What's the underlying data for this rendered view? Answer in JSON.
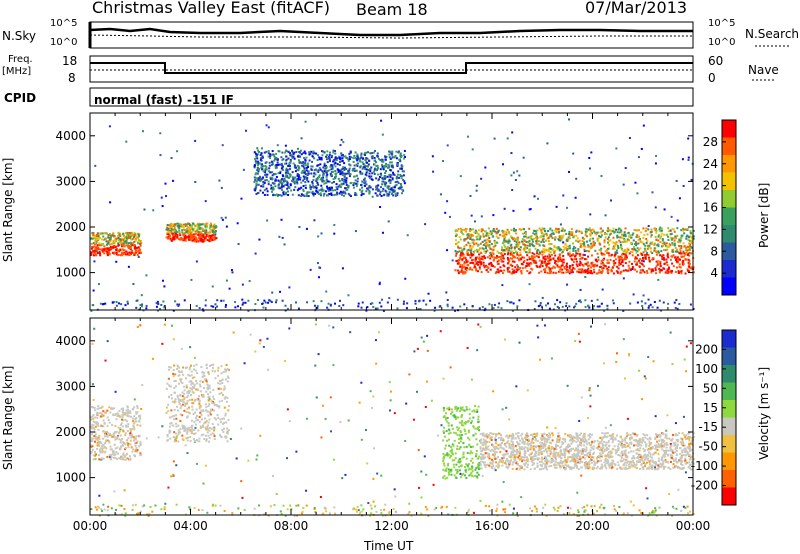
{
  "header": {
    "station": "Christmas Valley East (fitACF)",
    "beam": "Beam 18",
    "date": "07/Mar/2013"
  },
  "top_panels": {
    "nsky_label": "N.Sky",
    "nsky_ticks": [
      "10^5",
      "10^0"
    ],
    "nsearch_label": "N.Search",
    "nsearch_ticks": [
      "10^5",
      "10^0"
    ],
    "freq_label_line1": "Freq.",
    "freq_label_line2": "[MHz]",
    "freq_ticks": [
      "18",
      "8"
    ],
    "nave_label": "Nave",
    "nave_ticks": [
      "60",
      "0"
    ],
    "cpid_label": "CPID",
    "cpid_text": "normal (fast) -151 IF"
  },
  "power_panel": {
    "ylabel": "Slant Range [km]",
    "colorbar_label": "Power [dB]",
    "colorbar_ticks": [
      "28",
      "24",
      "20",
      "16",
      "12",
      "8",
      "4"
    ],
    "colorbar_colors": [
      "#ff0000",
      "#ff5a00",
      "#ff9800",
      "#f2c200",
      "#90cc30",
      "#3aa060",
      "#2f8a6e",
      "#2a5aa0",
      "#1b2bd0",
      "#0000ff"
    ]
  },
  "velocity_panel": {
    "ylabel": "Slant Range [km]",
    "colorbar_label": "Velocity [m s⁻¹]",
    "colorbar_ticks": [
      "200",
      "100",
      "50",
      "15",
      "-15",
      "-50",
      "-100",
      "-200"
    ],
    "colorbar_colors": [
      "#1b2bd0",
      "#2a5aa0",
      "#2f8a6e",
      "#50b850",
      "#8ed840",
      "#c8c8c0",
      "#f0c040",
      "#ff9800",
      "#ff6000",
      "#ff0000"
    ]
  },
  "x_axis": {
    "label": "Time UT",
    "ticks": [
      "00:00",
      "04:00",
      "08:00",
      "12:00",
      "16:00",
      "20:00",
      "00:00"
    ]
  },
  "chart_data": [
    {
      "type": "heatmap",
      "title": "Power",
      "ylabel": "Slant Range [km]",
      "xlabel": "",
      "yticks": [
        1000,
        2000,
        3000,
        4000
      ],
      "ylim": [
        180,
        4500
      ],
      "xlim_hours": [
        0,
        24
      ],
      "colorbar": {
        "label": "Power [dB]",
        "ticks": [
          4,
          8,
          12,
          16,
          20,
          24,
          28
        ]
      },
      "regions": [
        {
          "t_start": 0.0,
          "t_end": 2.0,
          "range_low": 1400,
          "range_high": 1900,
          "power_db": 28
        },
        {
          "t_start": 3.0,
          "t_end": 5.0,
          "range_low": 1700,
          "range_high": 2100,
          "power_db": 26
        },
        {
          "t_start": 14.5,
          "t_end": 24.0,
          "range_low": 1000,
          "range_high": 2000,
          "power_db": 28
        },
        {
          "t_start": 6.5,
          "t_end": 12.5,
          "range_low": 2700,
          "range_high": 3700,
          "power_db": 8
        }
      ]
    },
    {
      "type": "heatmap",
      "title": "Velocity",
      "ylabel": "Slant Range [km]",
      "xlabel": "Time UT",
      "yticks": [
        1000,
        2000,
        3000,
        4000
      ],
      "ylim": [
        180,
        4500
      ],
      "xlim_hours": [
        0,
        24
      ],
      "colorbar": {
        "label": "Velocity [m s⁻¹]",
        "ticks": [
          -200,
          -100,
          -50,
          -15,
          15,
          50,
          100,
          200
        ]
      },
      "regions": [
        {
          "t_start": 0.0,
          "t_end": 2.0,
          "range_low": 1400,
          "range_high": 2600,
          "velocity": 0
        },
        {
          "t_start": 3.0,
          "t_end": 5.5,
          "range_low": 1800,
          "range_high": 3500,
          "velocity": 0
        },
        {
          "t_start": 14.0,
          "t_end": 15.5,
          "range_low": 1000,
          "range_high": 2600,
          "velocity": 50
        },
        {
          "t_start": 15.5,
          "t_end": 24.0,
          "range_low": 1200,
          "range_high": 2000,
          "velocity": 0
        }
      ]
    }
  ]
}
